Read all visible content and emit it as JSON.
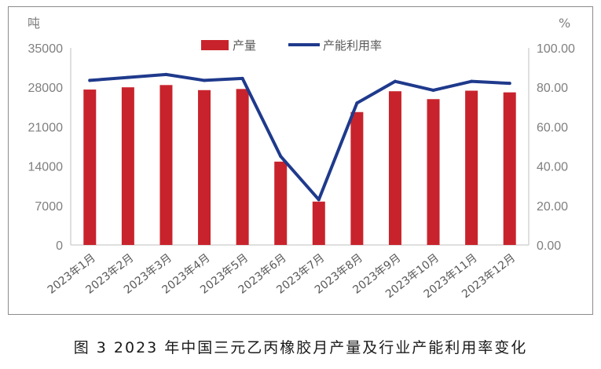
{
  "caption": "图 3  2023 年中国三元乙丙橡胶月产量及行业产能利用率变化",
  "chart_data": {
    "type": "bar",
    "categories": [
      "2023年1月",
      "2023年2月",
      "2023年3月",
      "2023年4月",
      "2023年5月",
      "2023年6月",
      "2023年7月",
      "2023年8月",
      "2023年9月",
      "2023年10月",
      "2023年11月",
      "2023年12月"
    ],
    "series": [
      {
        "name": "产量",
        "type": "bar",
        "axis": "left",
        "color": "#c8232c",
        "values": [
          27600,
          28000,
          28400,
          27500,
          27700,
          14800,
          7700,
          23600,
          27300,
          25900,
          27400,
          27100
        ]
      },
      {
        "name": "产能利用率",
        "type": "line",
        "axis": "right",
        "color": "#1f3a8c",
        "values": [
          83.5,
          85.0,
          86.5,
          83.5,
          84.5,
          45.0,
          23.0,
          72.0,
          83.0,
          78.5,
          83.0,
          82.0
        ]
      }
    ],
    "y_left": {
      "unit": "吨",
      "min": 0,
      "max": 35000,
      "ticks": [
        "0",
        "7000",
        "14000",
        "21000",
        "28000",
        "35000"
      ]
    },
    "y_right": {
      "unit": "%",
      "min": 0,
      "max": 100,
      "ticks": [
        "0.00",
        "20.00",
        "40.00",
        "60.00",
        "80.00",
        "100.00"
      ]
    },
    "grid": false,
    "legend_position": "top"
  }
}
